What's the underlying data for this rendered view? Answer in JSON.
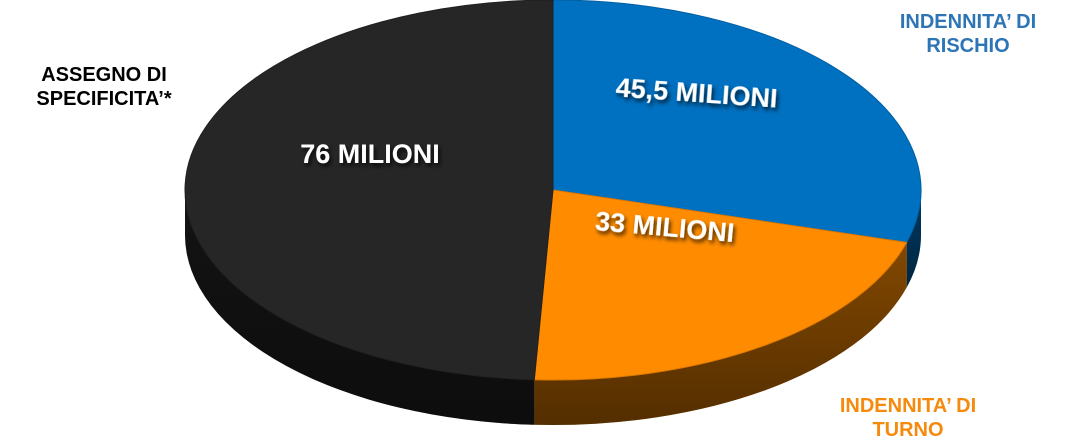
{
  "chart_data": {
    "type": "pie",
    "style": "3d",
    "unit": "MILIONI",
    "slices": [
      {
        "category_lines": [
          "INDENNITA’ DI",
          "RISCHIO"
        ],
        "value": 45.5,
        "value_label": "45,5 MILIONI",
        "color": "#0070c0",
        "label_color": "#2e75b6"
      },
      {
        "category_lines": [
          "INDENNITA’ DI",
          "TURNO"
        ],
        "value": 33,
        "value_label": "33 MILIONI",
        "color": "#ff8c00",
        "label_color": "#f58a0c"
      },
      {
        "category_lines": [
          "ASSEGNO DI",
          "SPECIFICITA’*"
        ],
        "value": 76,
        "value_label": "76 MILIONI",
        "color": "#262626",
        "label_color": "#000000"
      }
    ]
  }
}
